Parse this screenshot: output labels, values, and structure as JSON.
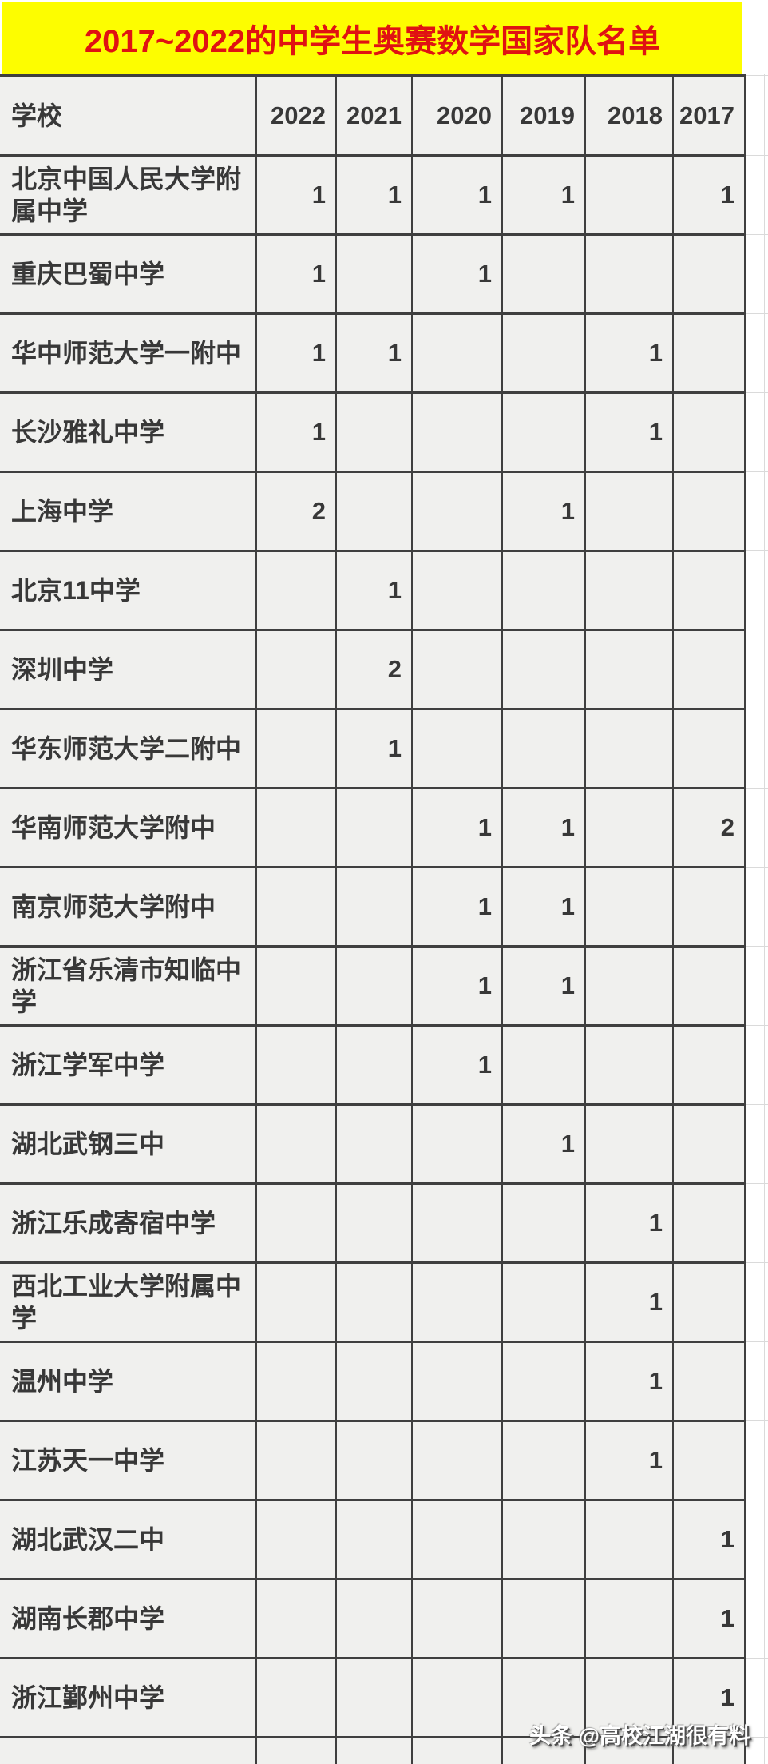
{
  "title": "2017~2022的中学生奥赛数学国家队名单",
  "watermark": "头条 @高校江湖很有料",
  "colors": {
    "title_bg": "#fdfd00",
    "title_text": "#e01212",
    "cell_bg": "#f0f0ee",
    "border_dark": "#3f3f3f",
    "border_light": "#dadada",
    "table_text": "#383838",
    "watermark_text": "#ffffff"
  },
  "table": {
    "school_header": "学校",
    "year_headers": [
      "2022",
      "2021",
      "2020",
      "2019",
      "2018",
      "2017"
    ],
    "rows": [
      {
        "school": "北京中国人民大学附属中学",
        "values": [
          "1",
          "1",
          "1",
          "1",
          "",
          "1"
        ]
      },
      {
        "school": "重庆巴蜀中学",
        "values": [
          "1",
          "",
          "1",
          "",
          "",
          ""
        ]
      },
      {
        "school": "华中师范大学一附中",
        "values": [
          "1",
          "1",
          "",
          "",
          "1",
          ""
        ]
      },
      {
        "school": "长沙雅礼中学",
        "values": [
          "1",
          "",
          "",
          "",
          "1",
          ""
        ]
      },
      {
        "school": "上海中学",
        "values": [
          "2",
          "",
          "",
          "1",
          "",
          ""
        ]
      },
      {
        "school": "北京11中学",
        "values": [
          "",
          "1",
          "",
          "",
          "",
          ""
        ]
      },
      {
        "school": "深圳中学",
        "values": [
          "",
          "2",
          "",
          "",
          "",
          ""
        ]
      },
      {
        "school": "华东师范大学二附中",
        "values": [
          "",
          "1",
          "",
          "",
          "",
          ""
        ]
      },
      {
        "school": "华南师范大学附中",
        "values": [
          "",
          "",
          "1",
          "1",
          "",
          "2"
        ]
      },
      {
        "school": "南京师范大学附中",
        "values": [
          "",
          "",
          "1",
          "1",
          "",
          ""
        ]
      },
      {
        "school": "浙江省乐清市知临中学",
        "values": [
          "",
          "",
          "1",
          "1",
          "",
          ""
        ]
      },
      {
        "school": "浙江学军中学",
        "values": [
          "",
          "",
          "1",
          "",
          "",
          ""
        ]
      },
      {
        "school": "湖北武钢三中",
        "values": [
          "",
          "",
          "",
          "1",
          "",
          ""
        ]
      },
      {
        "school": "浙江乐成寄宿中学",
        "values": [
          "",
          "",
          "",
          "",
          "1",
          ""
        ]
      },
      {
        "school": "西北工业大学附属中学",
        "values": [
          "",
          "",
          "",
          "",
          "1",
          ""
        ]
      },
      {
        "school": "温州中学",
        "values": [
          "",
          "",
          "",
          "",
          "1",
          ""
        ]
      },
      {
        "school": "江苏天一中学",
        "values": [
          "",
          "",
          "",
          "",
          "1",
          ""
        ]
      },
      {
        "school": "湖北武汉二中",
        "values": [
          "",
          "",
          "",
          "",
          "",
          "1"
        ]
      },
      {
        "school": "湖南长郡中学",
        "values": [
          "",
          "",
          "",
          "",
          "",
          "1"
        ]
      },
      {
        "school": "浙江鄞州中学",
        "values": [
          "",
          "",
          "",
          "",
          "",
          "1"
        ]
      }
    ]
  },
  "chart_data": {
    "type": "table",
    "title": "2017~2022的中学生奥赛数学国家队名单",
    "columns": [
      "学校",
      "2022",
      "2021",
      "2020",
      "2019",
      "2018",
      "2017"
    ],
    "rows": [
      [
        "北京中国人民大学附属中学",
        1,
        1,
        1,
        1,
        null,
        1
      ],
      [
        "重庆巴蜀中学",
        1,
        null,
        1,
        null,
        null,
        null
      ],
      [
        "华中师范大学一附中",
        1,
        1,
        null,
        null,
        1,
        null
      ],
      [
        "长沙雅礼中学",
        1,
        null,
        null,
        null,
        1,
        null
      ],
      [
        "上海中学",
        2,
        null,
        null,
        1,
        null,
        null
      ],
      [
        "北京11中学",
        null,
        1,
        null,
        null,
        null,
        null
      ],
      [
        "深圳中学",
        null,
        2,
        null,
        null,
        null,
        null
      ],
      [
        "华东师范大学二附中",
        null,
        1,
        null,
        null,
        null,
        null
      ],
      [
        "华南师范大学附中",
        null,
        null,
        1,
        1,
        null,
        2
      ],
      [
        "南京师范大学附中",
        null,
        null,
        1,
        1,
        null,
        null
      ],
      [
        "浙江省乐清市知临中学",
        null,
        null,
        1,
        1,
        null,
        null
      ],
      [
        "浙江学军中学",
        null,
        null,
        1,
        null,
        null,
        null
      ],
      [
        "湖北武钢三中",
        null,
        null,
        null,
        1,
        null,
        null
      ],
      [
        "浙江乐成寄宿中学",
        null,
        null,
        null,
        null,
        1,
        null
      ],
      [
        "西北工业大学附属中学",
        null,
        null,
        null,
        null,
        1,
        null
      ],
      [
        "温州中学",
        null,
        null,
        null,
        null,
        1,
        null
      ],
      [
        "江苏天一中学",
        null,
        null,
        null,
        null,
        1,
        null
      ],
      [
        "湖北武汉二中",
        null,
        null,
        null,
        null,
        null,
        1
      ],
      [
        "湖南长郡中学",
        null,
        null,
        null,
        null,
        null,
        1
      ],
      [
        "浙江鄞州中学",
        null,
        null,
        null,
        null,
        null,
        1
      ]
    ]
  }
}
